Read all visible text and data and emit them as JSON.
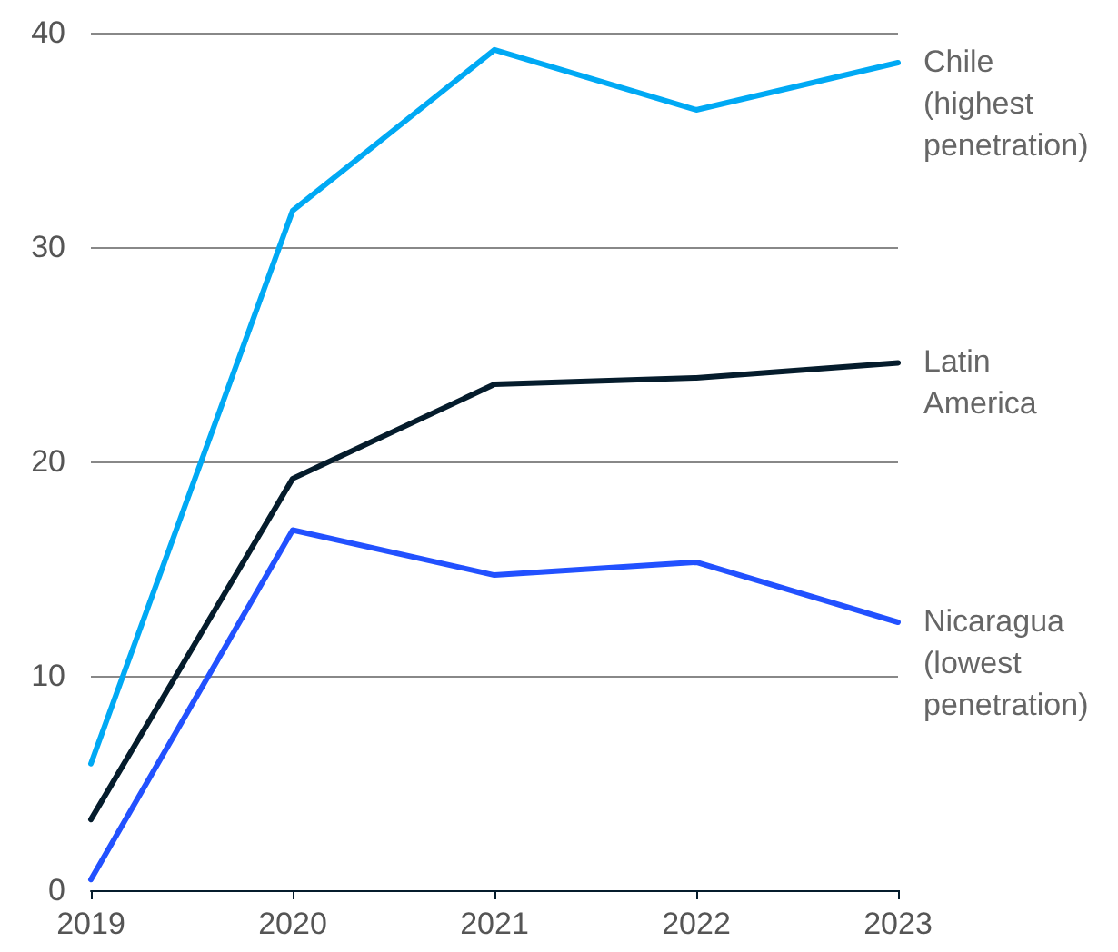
{
  "chart_data": {
    "type": "line",
    "categories": [
      "2019",
      "2020",
      "2021",
      "2022",
      "2023"
    ],
    "series": [
      {
        "name": "Chile (highest penetration)",
        "color": "#00a9f4",
        "values": [
          5.9,
          31.7,
          39.2,
          36.4,
          38.6
        ]
      },
      {
        "name": "Latin America",
        "color": "#051c2c",
        "values": [
          3.3,
          19.2,
          23.6,
          23.9,
          24.6
        ]
      },
      {
        "name": "Nicaragua (lowest penetration)",
        "color": "#2251ff",
        "values": [
          0.5,
          16.8,
          14.7,
          15.3,
          12.5
        ]
      }
    ],
    "ylim": [
      0,
      40
    ],
    "yticks": [
      0,
      10,
      20,
      30,
      40
    ],
    "grid": "y",
    "legend": false,
    "marker": "none",
    "line_style": "solid"
  }
}
